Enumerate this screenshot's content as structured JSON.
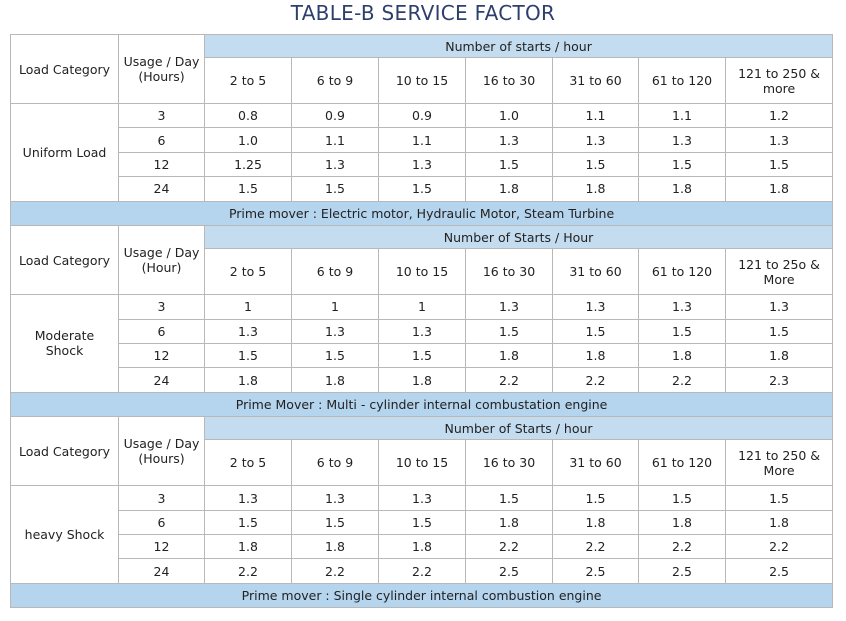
{
  "title": "TABLE-B SERVICE FACTOR",
  "sections": [
    {
      "load_category_label": "Load Category",
      "usage_label": "Usage / Day (Hours)",
      "starts_label": "Number of starts / hour",
      "columns": [
        "2 to 5",
        "6 to 9",
        "10 to 15",
        "16 to 30",
        "31 to 60",
        "61 to 120",
        "121 to 250 & more"
      ],
      "category": "Uniform Load",
      "rows": [
        [
          "3",
          "0.8",
          "0.9",
          "0.9",
          "1.0",
          "1.1",
          "1.1",
          "1.2"
        ],
        [
          "6",
          "1.0",
          "1.1",
          "1.1",
          "1.3",
          "1.3",
          "1.3",
          "1.3"
        ],
        [
          "12",
          "1.25",
          "1.3",
          "1.3",
          "1.5",
          "1.5",
          "1.5",
          "1.5"
        ],
        [
          "24",
          "1.5",
          "1.5",
          "1.5",
          "1.8",
          "1.8",
          "1.8",
          "1.8"
        ]
      ],
      "prime_mover": "Prime mover : Electric motor, Hydraulic Motor, Steam Turbine"
    },
    {
      "load_category_label": "Load Category",
      "usage_label": "Usage / Day (Hour)",
      "starts_label": "Number of Starts / Hour",
      "columns": [
        "2 to 5",
        "6 to 9",
        "10 to 15",
        "16 to 30",
        "31 to 60",
        "61 to 120",
        "121 to 25o & More"
      ],
      "category": "Moderate Shock",
      "rows": [
        [
          "3",
          "1",
          "1",
          "1",
          "1.3",
          "1.3",
          "1.3",
          "1.3"
        ],
        [
          "6",
          "1.3",
          "1.3",
          "1.3",
          "1.5",
          "1.5",
          "1.5",
          "1.5"
        ],
        [
          "12",
          "1.5",
          "1.5",
          "1.5",
          "1.8",
          "1.8",
          "1.8",
          "1.8"
        ],
        [
          "24",
          "1.8",
          "1.8",
          "1.8",
          "2.2",
          "2.2",
          "2.2",
          "2.3"
        ]
      ],
      "prime_mover": "Prime Mover : Multi - cylinder internal combustation engine"
    },
    {
      "load_category_label": "Load Category",
      "usage_label": "Usage / Day (Hours)",
      "starts_label": "Number of Starts / hour",
      "columns": [
        "2 to 5",
        "6 to 9",
        "10 to 15",
        "16 to 30",
        "31 to 60",
        "61 to 120",
        "121 to 250 & More"
      ],
      "category": "heavy Shock",
      "rows": [
        [
          "3",
          "1.3",
          "1.3",
          "1.3",
          "1.5",
          "1.5",
          "1.5",
          "1.5"
        ],
        [
          "6",
          "1.5",
          "1.5",
          "1.5",
          "1.8",
          "1.8",
          "1.8",
          "1.8"
        ],
        [
          "12",
          "1.8",
          "1.8",
          "1.8",
          "2.2",
          "2.2",
          "2.2",
          "2.2"
        ],
        [
          "24",
          "2.2",
          "2.2",
          "2.2",
          "2.5",
          "2.5",
          "2.5",
          "2.5"
        ]
      ],
      "prime_mover": "Prime mover : Single cylinder internal combustion engine"
    }
  ]
}
